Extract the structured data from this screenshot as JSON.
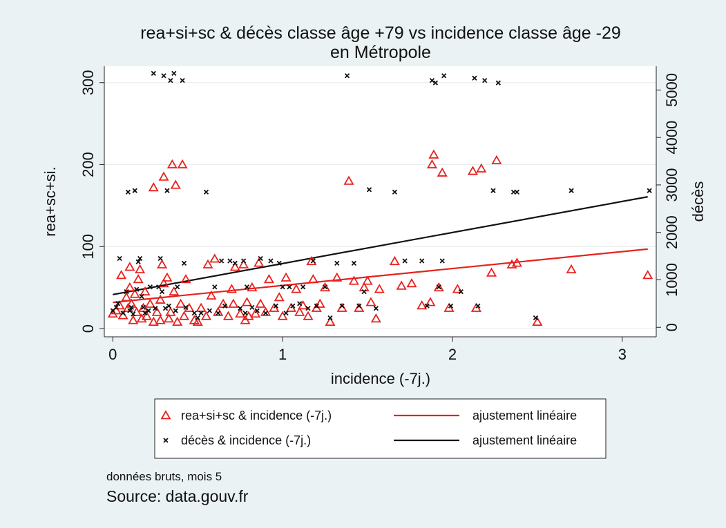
{
  "chart_data": {
    "type": "scatter",
    "title": [
      "rea+si+sc & décès classe âge +79 vs incidence classe âge -29",
      "en Métropole"
    ],
    "xlabel": "incidence (-7j.)",
    "ylabel_left": "rea+sc+si.",
    "ylabel_right": "décès",
    "xlim": [
      -0.05,
      3.2
    ],
    "ylim_left": [
      -10,
      320
    ],
    "ylim_right": [
      -200,
      5500
    ],
    "x_ticks": [
      0,
      1,
      2,
      3
    ],
    "y_left_ticks": [
      0,
      100,
      200,
      300
    ],
    "y_right_ticks": [
      0,
      1000,
      2000,
      3000,
      4000,
      5000
    ],
    "grid": "horizontal",
    "legend_position": "bottom",
    "colors": {
      "rea": "#e8211d",
      "deces": "#111111",
      "plot_bg": "#ffffff",
      "page_bg": "#eaf2f3",
      "grid": "#e5eced"
    },
    "series": [
      {
        "name": "rea+si+sc & incidence (-7j.)",
        "axis": "left",
        "marker": "triangle",
        "color": "#e8211d",
        "points": [
          [
            0.0,
            18
          ],
          [
            0.02,
            22
          ],
          [
            0.04,
            28
          ],
          [
            0.05,
            65
          ],
          [
            0.06,
            16
          ],
          [
            0.08,
            38
          ],
          [
            0.09,
            25
          ],
          [
            0.1,
            50
          ],
          [
            0.1,
            75
          ],
          [
            0.11,
            30
          ],
          [
            0.12,
            10
          ],
          [
            0.13,
            42
          ],
          [
            0.14,
            20
          ],
          [
            0.15,
            60
          ],
          [
            0.16,
            72
          ],
          [
            0.17,
            12
          ],
          [
            0.18,
            25
          ],
          [
            0.19,
            45
          ],
          [
            0.2,
            15
          ],
          [
            0.22,
            30
          ],
          [
            0.24,
            8
          ],
          [
            0.24,
            172
          ],
          [
            0.26,
            20
          ],
          [
            0.28,
            35
          ],
          [
            0.28,
            10
          ],
          [
            0.29,
            78
          ],
          [
            0.3,
            55
          ],
          [
            0.3,
            185
          ],
          [
            0.32,
            62
          ],
          [
            0.33,
            12
          ],
          [
            0.34,
            20
          ],
          [
            0.35,
            200
          ],
          [
            0.36,
            45
          ],
          [
            0.37,
            175
          ],
          [
            0.38,
            8
          ],
          [
            0.4,
            30
          ],
          [
            0.41,
            200
          ],
          [
            0.42,
            15
          ],
          [
            0.43,
            60
          ],
          [
            0.45,
            25
          ],
          [
            0.48,
            10
          ],
          [
            0.5,
            8
          ],
          [
            0.52,
            25
          ],
          [
            0.55,
            15
          ],
          [
            0.56,
            78
          ],
          [
            0.58,
            40
          ],
          [
            0.6,
            85
          ],
          [
            0.62,
            20
          ],
          [
            0.65,
            30
          ],
          [
            0.68,
            15
          ],
          [
            0.7,
            48
          ],
          [
            0.71,
            30
          ],
          [
            0.72,
            75
          ],
          [
            0.75,
            18
          ],
          [
            0.77,
            78
          ],
          [
            0.78,
            10
          ],
          [
            0.79,
            32
          ],
          [
            0.8,
            15
          ],
          [
            0.82,
            50
          ],
          [
            0.84,
            18
          ],
          [
            0.86,
            80
          ],
          [
            0.87,
            30
          ],
          [
            0.9,
            20
          ],
          [
            0.92,
            60
          ],
          [
            0.95,
            25
          ],
          [
            0.98,
            38
          ],
          [
            1.0,
            15
          ],
          [
            1.02,
            62
          ],
          [
            1.05,
            25
          ],
          [
            1.08,
            48
          ],
          [
            1.1,
            20
          ],
          [
            1.12,
            28
          ],
          [
            1.15,
            15
          ],
          [
            1.17,
            82
          ],
          [
            1.18,
            60
          ],
          [
            1.2,
            25
          ],
          [
            1.22,
            30
          ],
          [
            1.25,
            50
          ],
          [
            1.28,
            8
          ],
          [
            1.32,
            62
          ],
          [
            1.35,
            25
          ],
          [
            1.39,
            180
          ],
          [
            1.42,
            58
          ],
          [
            1.45,
            25
          ],
          [
            1.48,
            50
          ],
          [
            1.5,
            58
          ],
          [
            1.52,
            32
          ],
          [
            1.55,
            12
          ],
          [
            1.57,
            48
          ],
          [
            1.66,
            82
          ],
          [
            1.7,
            52
          ],
          [
            1.76,
            55
          ],
          [
            1.82,
            28
          ],
          [
            1.87,
            32
          ],
          [
            1.88,
            200
          ],
          [
            1.89,
            212
          ],
          [
            1.92,
            50
          ],
          [
            1.94,
            190
          ],
          [
            1.98,
            25
          ],
          [
            2.03,
            48
          ],
          [
            2.12,
            192
          ],
          [
            2.14,
            25
          ],
          [
            2.17,
            195
          ],
          [
            2.23,
            68
          ],
          [
            2.26,
            205
          ],
          [
            2.35,
            78
          ],
          [
            2.38,
            80
          ],
          [
            2.5,
            8
          ],
          [
            2.7,
            72
          ],
          [
            3.15,
            65
          ]
        ]
      },
      {
        "name": "décès & incidence (-7j.)",
        "axis": "right",
        "marker": "x",
        "color": "#111111",
        "points": [
          [
            0.0,
            350
          ],
          [
            0.02,
            420
          ],
          [
            0.03,
            500
          ],
          [
            0.04,
            1450
          ],
          [
            0.06,
            300
          ],
          [
            0.08,
            750
          ],
          [
            0.09,
            2850
          ],
          [
            0.1,
            350
          ],
          [
            0.11,
            420
          ],
          [
            0.12,
            280
          ],
          [
            0.13,
            2880
          ],
          [
            0.14,
            800
          ],
          [
            0.15,
            1380
          ],
          [
            0.16,
            1450
          ],
          [
            0.17,
            650
          ],
          [
            0.18,
            420
          ],
          [
            0.19,
            300
          ],
          [
            0.21,
            350
          ],
          [
            0.22,
            850
          ],
          [
            0.24,
            5350
          ],
          [
            0.25,
            400
          ],
          [
            0.27,
            850
          ],
          [
            0.28,
            1450
          ],
          [
            0.29,
            750
          ],
          [
            0.3,
            5300
          ],
          [
            0.31,
            400
          ],
          [
            0.32,
            2880
          ],
          [
            0.33,
            450
          ],
          [
            0.34,
            5200
          ],
          [
            0.36,
            5350
          ],
          [
            0.37,
            350
          ],
          [
            0.38,
            850
          ],
          [
            0.41,
            5200
          ],
          [
            0.42,
            1350
          ],
          [
            0.43,
            420
          ],
          [
            0.48,
            300
          ],
          [
            0.5,
            200
          ],
          [
            0.52,
            300
          ],
          [
            0.55,
            2850
          ],
          [
            0.57,
            350
          ],
          [
            0.6,
            850
          ],
          [
            0.62,
            300
          ],
          [
            0.64,
            1400
          ],
          [
            0.66,
            450
          ],
          [
            0.69,
            1400
          ],
          [
            0.72,
            1350
          ],
          [
            0.75,
            400
          ],
          [
            0.77,
            1400
          ],
          [
            0.78,
            300
          ],
          [
            0.79,
            850
          ],
          [
            0.82,
            420
          ],
          [
            0.85,
            350
          ],
          [
            0.87,
            1450
          ],
          [
            0.9,
            300
          ],
          [
            0.93,
            1400
          ],
          [
            0.96,
            450
          ],
          [
            0.98,
            1350
          ],
          [
            1.0,
            850
          ],
          [
            1.02,
            300
          ],
          [
            1.04,
            850
          ],
          [
            1.06,
            450
          ],
          [
            1.1,
            500
          ],
          [
            1.12,
            850
          ],
          [
            1.15,
            400
          ],
          [
            1.18,
            1400
          ],
          [
            1.2,
            450
          ],
          [
            1.25,
            850
          ],
          [
            1.28,
            200
          ],
          [
            1.32,
            1350
          ],
          [
            1.35,
            450
          ],
          [
            1.38,
            5300
          ],
          [
            1.42,
            1350
          ],
          [
            1.45,
            450
          ],
          [
            1.48,
            750
          ],
          [
            1.51,
            2900
          ],
          [
            1.55,
            400
          ],
          [
            1.66,
            2850
          ],
          [
            1.72,
            1400
          ],
          [
            1.82,
            1400
          ],
          [
            1.85,
            450
          ],
          [
            1.88,
            5200
          ],
          [
            1.9,
            5150
          ],
          [
            1.92,
            850
          ],
          [
            1.94,
            1400
          ],
          [
            1.95,
            5300
          ],
          [
            1.99,
            450
          ],
          [
            2.05,
            750
          ],
          [
            2.13,
            5250
          ],
          [
            2.15,
            450
          ],
          [
            2.19,
            5200
          ],
          [
            2.24,
            2880
          ],
          [
            2.27,
            5150
          ],
          [
            2.36,
            2850
          ],
          [
            2.38,
            2850
          ],
          [
            2.49,
            200
          ],
          [
            2.7,
            2880
          ],
          [
            3.16,
            2880
          ]
        ]
      },
      {
        "name": "ajustement linéaire",
        "axis": "left",
        "type": "line",
        "color": "#e8211d",
        "points": [
          [
            0.0,
            32
          ],
          [
            3.15,
            97
          ]
        ]
      },
      {
        "name": "ajustement linéaire",
        "axis": "right",
        "type": "line",
        "color": "#111111",
        "points": [
          [
            0.0,
            690
          ],
          [
            3.15,
            2750
          ]
        ]
      }
    ],
    "legend": [
      {
        "label": "rea+si+sc & incidence (-7j.)",
        "kind": "triangle",
        "color": "#e8211d"
      },
      {
        "label": "ajustement linéaire",
        "kind": "line",
        "color": "#e8211d"
      },
      {
        "label": "décès & incidence (-7j.)",
        "kind": "x",
        "color": "#111111"
      },
      {
        "label": "ajustement linéaire",
        "kind": "line",
        "color": "#111111"
      }
    ]
  },
  "notes": {
    "caption": "données bruts, mois 5",
    "source": "Source: data.gouv.fr"
  }
}
